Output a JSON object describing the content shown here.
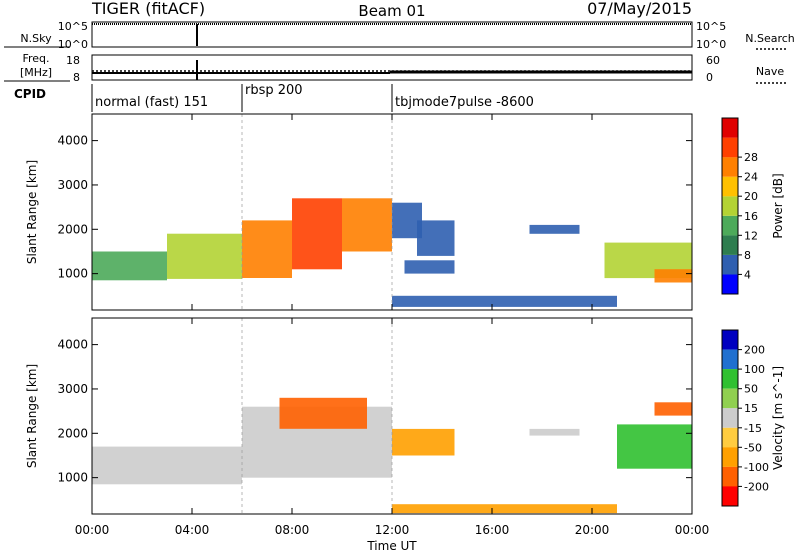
{
  "header": {
    "title_left": "TIGER (fitACF)",
    "title_center": "Beam 01",
    "title_right": "07/May/2015"
  },
  "sky_panel": {
    "left_label": "N.Sky",
    "right_label": "N.Search",
    "left_ticks": [
      "10^5",
      "10^0"
    ],
    "right_ticks": [
      "10^5",
      "10^0"
    ]
  },
  "freq_panel": {
    "left_label_1": "Freq.",
    "left_label_2": "[MHz]",
    "left_ticks": [
      "18",
      "8"
    ],
    "right_label": "Nave",
    "right_ticks": [
      "60",
      "0"
    ]
  },
  "cpid": {
    "label": "CPID",
    "modes": [
      {
        "name": "normal (fast) 151",
        "start_hour": 0
      },
      {
        "name": "rbsp 200",
        "start_hour": 6
      },
      {
        "name": "tbjmode7pulse -8600",
        "start_hour": 12
      }
    ]
  },
  "xaxis": {
    "label": "Time UT",
    "ticks": [
      "00:00",
      "04:00",
      "08:00",
      "12:00",
      "16:00",
      "20:00",
      "00:00"
    ]
  },
  "colors": {
    "power": [
      "#0000ff",
      "#2f5fb0",
      "#2e7d4f",
      "#4daa5a",
      "#b3d334",
      "#ffc000",
      "#ff8000",
      "#ff4000",
      "#e00000"
    ],
    "velocity": [
      "#ff0000",
      "#ff6000",
      "#ffa000",
      "#ffcc40",
      "#cccccc",
      "#90d050",
      "#30c030",
      "#2070d0",
      "#0000c0"
    ]
  },
  "chart_data": [
    {
      "type": "heatmap",
      "name": "power",
      "ylabel": "Slant Range [km]",
      "yticks": [
        1000,
        2000,
        3000,
        4000
      ],
      "ylim": [
        180,
        4600
      ],
      "xlim_hours": [
        0,
        24
      ],
      "colorbar_label": "Power [dB]",
      "colorbar_ticks": [
        "4",
        "8",
        "12",
        "16",
        "20",
        "24",
        "28"
      ],
      "colorbar_range": [
        0,
        30
      ],
      "bands": [
        {
          "t0": 0.0,
          "t1": 3.0,
          "r0": 850,
          "r1": 1500,
          "value": 12
        },
        {
          "t0": 3.0,
          "t1": 6.0,
          "r0": 880,
          "r1": 1900,
          "value": 16
        },
        {
          "t0": 6.0,
          "t1": 8.0,
          "r0": 900,
          "r1": 2200,
          "value": 22
        },
        {
          "t0": 8.0,
          "t1": 10.0,
          "r0": 1100,
          "r1": 2700,
          "value": 24
        },
        {
          "t0": 10.0,
          "t1": 12.0,
          "r0": 1500,
          "r1": 2700,
          "value": 22
        },
        {
          "t0": 12.0,
          "t1": 13.2,
          "r0": 1800,
          "r1": 2600,
          "value": 6
        },
        {
          "t0": 12.5,
          "t1": 14.5,
          "r0": 1000,
          "r1": 1300,
          "value": 6
        },
        {
          "t0": 13.0,
          "t1": 14.5,
          "r0": 1400,
          "r1": 2200,
          "value": 6
        },
        {
          "t0": 12.0,
          "t1": 21.0,
          "r0": 250,
          "r1": 500,
          "value": 4
        },
        {
          "t0": 17.5,
          "t1": 19.5,
          "r0": 1900,
          "r1": 2100,
          "value": 6
        },
        {
          "t0": 20.5,
          "t1": 24.0,
          "r0": 900,
          "r1": 1700,
          "value": 14
        },
        {
          "t0": 22.5,
          "t1": 24.0,
          "r0": 800,
          "r1": 1100,
          "value": 22
        }
      ]
    },
    {
      "type": "heatmap",
      "name": "velocity",
      "ylabel": "Slant Range [km]",
      "yticks": [
        1000,
        2000,
        3000,
        4000
      ],
      "ylim": [
        180,
        4600
      ],
      "xlim_hours": [
        0,
        24
      ],
      "colorbar_label": "Velocity [m s^-1]",
      "colorbar_ticks": [
        "200",
        "100",
        "50",
        "15",
        "-15",
        "-50",
        "-100",
        "-200"
      ],
      "bands": [
        {
          "t0": 0.0,
          "t1": 6.0,
          "r0": 850,
          "r1": 1700,
          "value": 0
        },
        {
          "t0": 6.0,
          "t1": 12.0,
          "r0": 1000,
          "r1": 2600,
          "value": 0
        },
        {
          "t0": 7.5,
          "t1": 11.0,
          "r0": 2100,
          "r1": 2800,
          "value": -150
        },
        {
          "t0": 12.0,
          "t1": 14.5,
          "r0": 1500,
          "r1": 2100,
          "value": -80
        },
        {
          "t0": 12.0,
          "t1": 21.0,
          "r0": 200,
          "r1": 400,
          "value": -60
        },
        {
          "t0": 17.5,
          "t1": 19.5,
          "r0": 1950,
          "r1": 2100,
          "value": 0
        },
        {
          "t0": 21.0,
          "t1": 24.0,
          "r0": 1200,
          "r1": 2200,
          "value": 60
        },
        {
          "t0": 22.5,
          "t1": 24.0,
          "r0": 2400,
          "r1": 2700,
          "value": -150
        }
      ]
    }
  ]
}
